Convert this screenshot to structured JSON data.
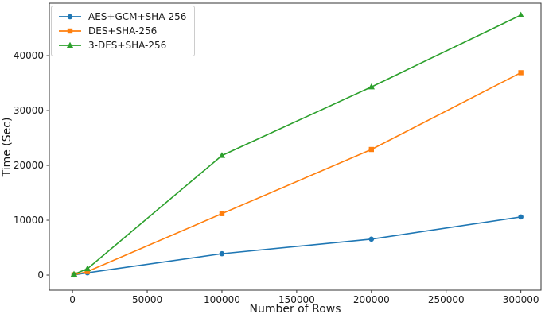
{
  "chart_data": {
    "type": "line",
    "title": "",
    "xlabel": "Number of Rows",
    "ylabel": "Time (Sec)",
    "x": [
      1000,
      10000,
      100000,
      200000,
      300000
    ],
    "series": [
      {
        "name": "AES+GCM+SHA-256",
        "color": "#1f77b4",
        "marker": "circle",
        "values": [
          30,
          420,
          3900,
          6550,
          10600
        ]
      },
      {
        "name": "DES+SHA-256",
        "color": "#ff7f0e",
        "marker": "square",
        "values": [
          60,
          640,
          11200,
          22900,
          36900
        ]
      },
      {
        "name": "3-DES+SHA-256",
        "color": "#2ca02c",
        "marker": "triangle",
        "values": [
          150,
          1150,
          21800,
          34300,
          47400
        ]
      }
    ],
    "xticks": {
      "values": [
        0,
        50000,
        100000,
        150000,
        200000,
        250000,
        300000
      ],
      "labels": [
        "0",
        "50000",
        "100000",
        "150000",
        "200000",
        "250000",
        "300000"
      ]
    },
    "yticks": {
      "values": [
        0,
        10000,
        20000,
        30000,
        40000
      ],
      "labels": [
        "0",
        "10000",
        "20000",
        "30000",
        "40000"
      ]
    },
    "xlim": [
      -15500,
      313500
    ],
    "ylim": [
      -2750,
      49570
    ],
    "grid": false,
    "legend_position": "upper-left",
    "axis_color": "#333333",
    "text_color": "#1a1a1a"
  }
}
